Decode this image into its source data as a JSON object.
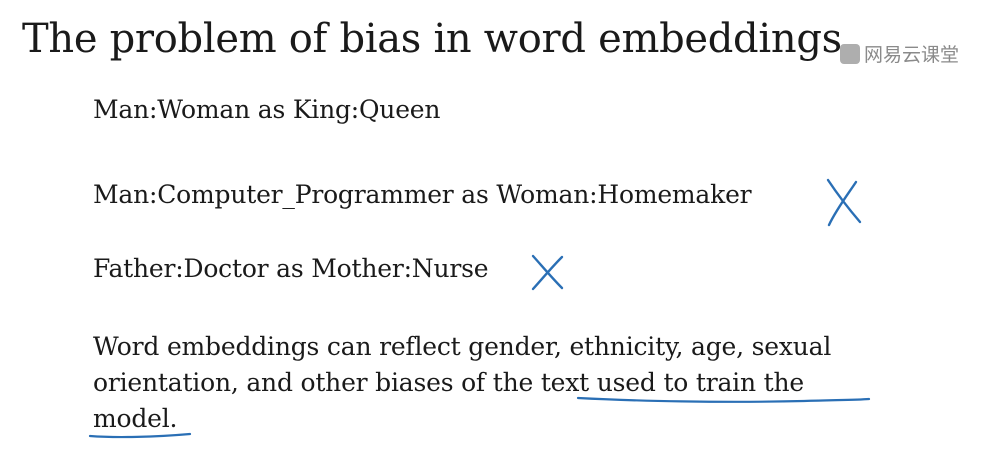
{
  "slide": {
    "title": "The problem of bias in word embeddings",
    "watermark": "网易云课堂",
    "analogies": [
      "Man:Woman as King:Queen",
      "Man:Computer_Programmer as Woman:Homemaker",
      "Father:Doctor as Mother:Nurse"
    ],
    "paragraph": {
      "line1": "Word embeddings can reflect gender, ethnicity, age, sexual",
      "line2_plain": "orientation, and other biases of the ",
      "line2_underlined": "text used to train the",
      "line3_underlined": "model."
    },
    "ink_color": "#2a6fb5"
  }
}
